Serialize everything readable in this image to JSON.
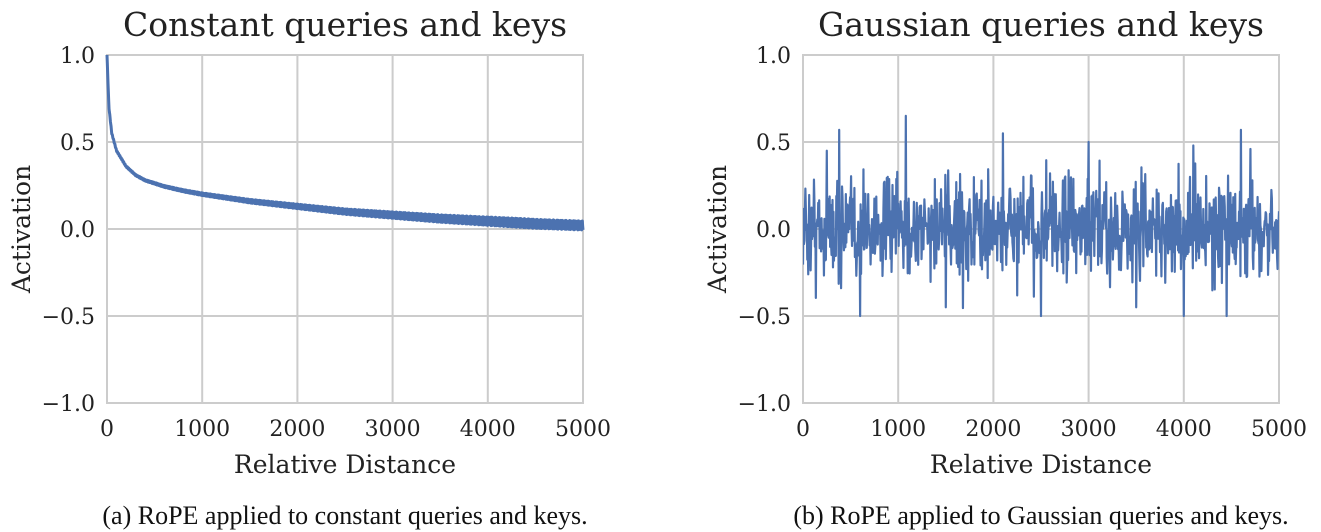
{
  "chart_data": [
    {
      "type": "line",
      "title": "Constant queries and keys",
      "xlabel": "Relative Distance",
      "ylabel": "Activation",
      "caption": "(a) RoPE applied to constant queries and keys.",
      "xlim": [
        0,
        5000
      ],
      "ylim": [
        -1.0,
        1.0
      ],
      "xticks": [
        "0",
        "1000",
        "2000",
        "3000",
        "4000",
        "5000"
      ],
      "yticks": [
        "1.0",
        "0.5",
        "0.0",
        "−0.5",
        "−1.0"
      ],
      "grid": true,
      "color": "#4c72b0",
      "series": [
        {
          "x": [
            0,
            20,
            50,
            100,
            200,
            300,
            400,
            600,
            800,
            1000,
            1500,
            2000,
            2500,
            3000,
            3500,
            4000,
            4500,
            5000
          ],
          "values": [
            1.0,
            0.7,
            0.55,
            0.45,
            0.36,
            0.31,
            0.28,
            0.245,
            0.22,
            0.2,
            0.16,
            0.13,
            0.1,
            0.08,
            0.06,
            0.045,
            0.03,
            0.02
          ]
        }
      ]
    },
    {
      "type": "line",
      "title": "Gaussian queries and keys",
      "xlabel": "Relative Distance",
      "ylabel": "Activation",
      "caption": "(b) RoPE applied to Gaussian queries and keys.",
      "xlim": [
        0,
        5000
      ],
      "ylim": [
        -1.0,
        1.0
      ],
      "xticks": [
        "0",
        "1000",
        "2000",
        "3000",
        "4000",
        "5000"
      ],
      "yticks": [
        "1.0",
        "0.5",
        "0.0",
        "−0.5",
        "−1.0"
      ],
      "grid": true,
      "color": "#4c72b0",
      "series": [
        {
          "x": [
            0,
            250,
            380,
            600,
            1080,
            1500,
            2100,
            2500,
            3000,
            3500,
            4000,
            4100,
            4450,
            4600,
            5000
          ],
          "values": [
            0.0,
            0.45,
            0.57,
            -0.55,
            0.65,
            -0.45,
            0.55,
            -0.5,
            0.5,
            -0.45,
            -0.61,
            0.48,
            -0.58,
            0.57,
            0.0
          ],
          "envelope": [
            0.35,
            -0.35
          ]
        }
      ]
    }
  ]
}
